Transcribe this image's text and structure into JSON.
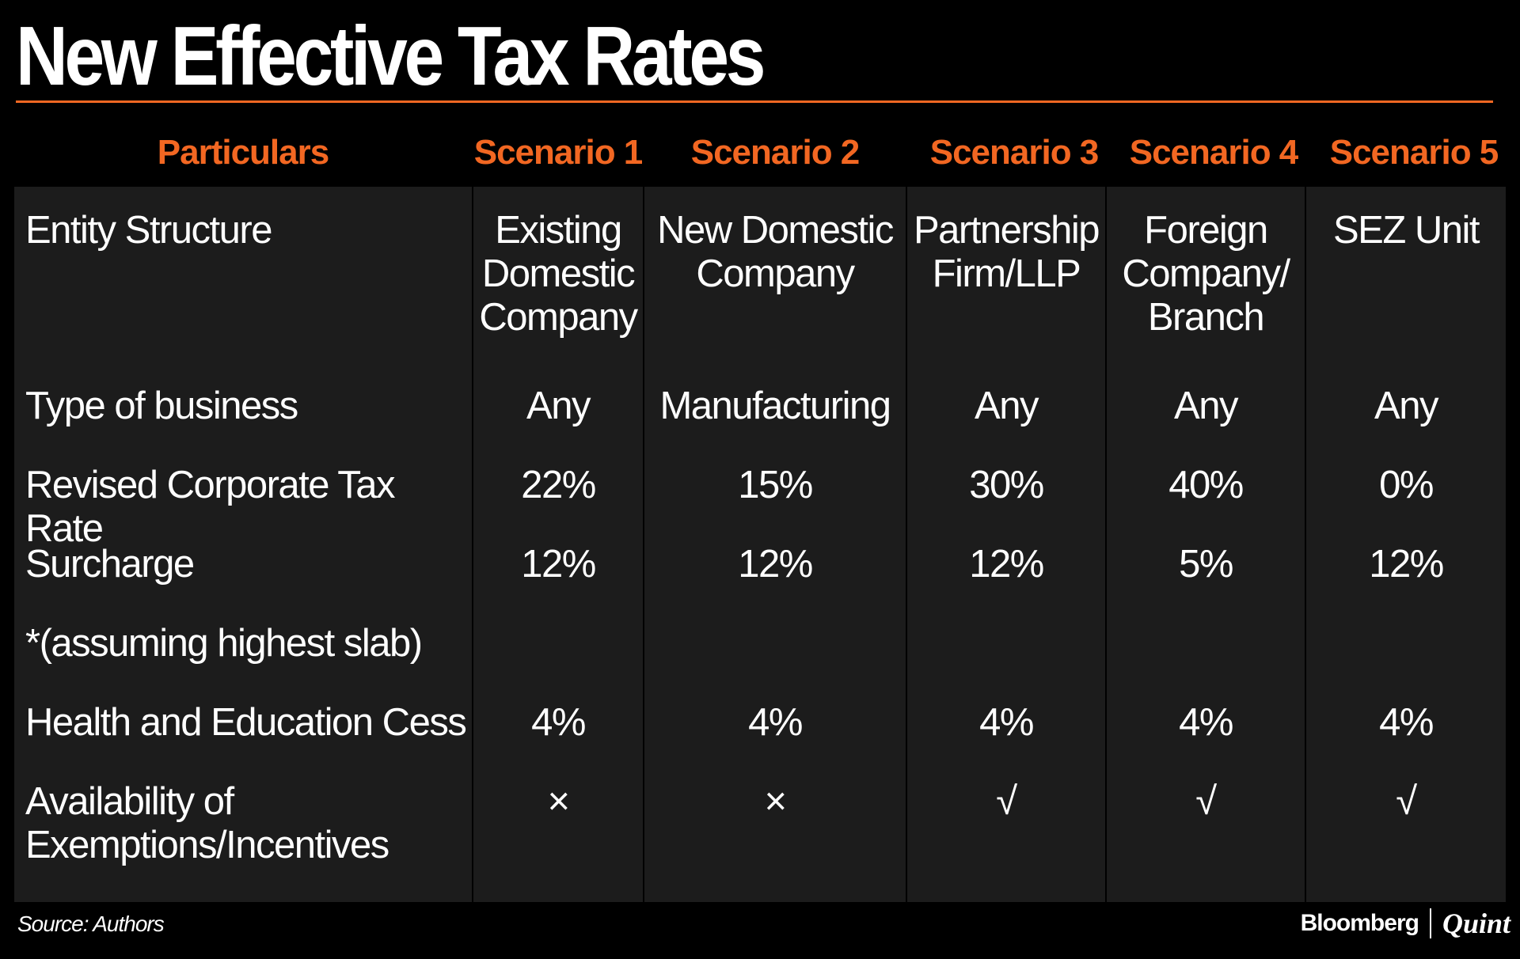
{
  "colors": {
    "background": "#000000",
    "panel": "#1c1c1c",
    "accent": "#f26722",
    "text": "#ffffff"
  },
  "title": "New Effective Tax Rates",
  "source": "Source: Authors",
  "brand": {
    "primary": "Bloomberg",
    "secondary": "Quint"
  },
  "chart_data": {
    "type": "table",
    "title": "New Effective Tax Rates",
    "columns": [
      "Particulars",
      "Scenario 1",
      "Scenario 2",
      "Scenario 3",
      "Scenario 4",
      "Scenario 5"
    ],
    "rows": [
      {
        "label": "Entity Structure",
        "values": [
          "Existing\nDomestic\nCompany",
          "New Domestic\nCompany",
          "Partnership\nFirm/LLP",
          "Foreign\nCompany/\nBranch",
          "SEZ Unit"
        ]
      },
      {
        "label": "Type of business",
        "values": [
          "Any",
          "Manufacturing",
          "Any",
          "Any",
          "Any"
        ]
      },
      {
        "label": "Revised Corporate Tax Rate",
        "values": [
          "22%",
          "15%",
          "30%",
          "40%",
          "0%"
        ]
      },
      {
        "label": "Surcharge",
        "values": [
          "12%",
          "12%",
          "12%",
          "5%",
          "12%"
        ]
      },
      {
        "label": "*(assuming highest slab)",
        "values": [
          "",
          "",
          "",
          "",
          ""
        ]
      },
      {
        "label": "Health and Education Cess",
        "values": [
          "4%",
          "4%",
          "4%",
          "4%",
          "4%"
        ]
      },
      {
        "label": "Availability of\nExemptions/Incentives",
        "values": [
          "×",
          "×",
          "√",
          "√",
          "√"
        ]
      }
    ]
  }
}
